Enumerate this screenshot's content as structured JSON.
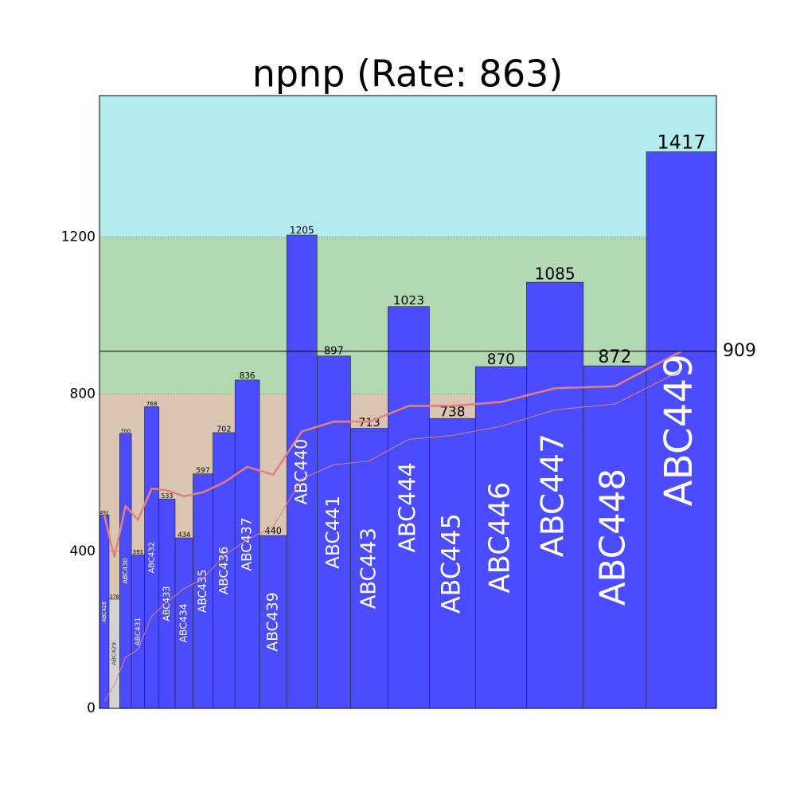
{
  "chart_data": {
    "type": "bar",
    "title": "npnp (Rate: 863)",
    "categories": [
      "ABC428",
      "ABC429",
      "ABC430",
      "ABC431",
      "ABC432",
      "ABC433",
      "ABC434",
      "ABC435",
      "ABC436",
      "ABC437",
      "ABC439",
      "ABC440",
      "ABC441",
      "ABC443",
      "ABC444",
      "ABC445",
      "ABC446",
      "ABC447",
      "ABC448",
      "ABC449"
    ],
    "values": [
      492,
      278,
      700,
      391,
      768,
      533,
      434,
      597,
      702,
      836,
      440,
      1205,
      897,
      713,
      1023,
      738,
      870,
      1085,
      872,
      1417
    ],
    "colors": [
      "#4b4bff",
      "#d3d3d3",
      "#4b4bff",
      "#4b4bff",
      "#4b4bff",
      "#4b4bff",
      "#4b4bff",
      "#4b4bff",
      "#4b4bff",
      "#4b4bff",
      "#4b4bff",
      "#4b4bff",
      "#4b4bff",
      "#4b4bff",
      "#4b4bff",
      "#4b4bff",
      "#4b4bff",
      "#4b4bff",
      "#4b4bff",
      "#4b4bff"
    ],
    "lines": [
      {
        "color": "#e08080",
        "values": [
          492,
          385,
          515,
          480,
          560,
          555,
          540,
          550,
          575,
          615,
          595,
          705,
          730,
          730,
          770,
          770,
          780,
          815,
          820,
          909
        ]
      },
      {
        "color": "#e08080",
        "values": [
          18,
          60,
          130,
          150,
          235,
          270,
          305,
          330,
          388,
          430,
          462,
          585,
          620,
          630,
          685,
          695,
          718,
          760,
          775,
          860
        ]
      }
    ],
    "bands": [
      {
        "from": 0,
        "to": 800,
        "color": "#d9c5b2"
      },
      {
        "from": 800,
        "to": 1200,
        "color": "#b3d9b3"
      },
      {
        "from": 1200,
        "to": 1560,
        "color": "#b3ecec"
      }
    ],
    "reference_line": 909,
    "ylim": [
      0,
      1560
    ],
    "yticks": [
      0,
      400,
      800,
      1200
    ],
    "grid": true
  }
}
